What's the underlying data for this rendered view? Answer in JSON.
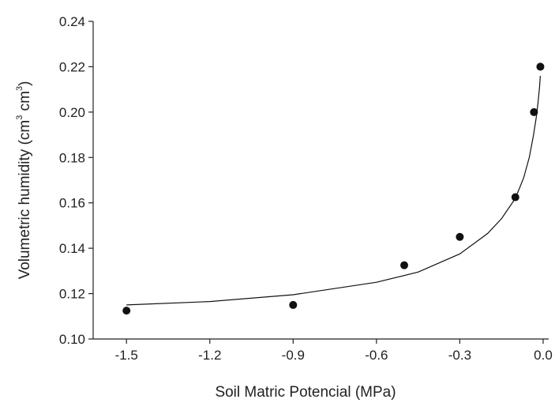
{
  "chart_data": {
    "type": "scatter",
    "title": "",
    "xlabel": "Soil Matric Potencial (MPa)",
    "ylabel": {
      "main": "Volumetric humidity (cm",
      "sup1": "3",
      "mid": " cm",
      "sup2": "3",
      "end": ")"
    },
    "xlim": [
      -1.62,
      0.02
    ],
    "ylim": [
      0.1,
      0.24
    ],
    "x_ticks": [
      -1.5,
      -1.2,
      -0.9,
      -0.6,
      -0.3,
      0.0
    ],
    "x_tick_labels": [
      "-1.5",
      "-1.2",
      "-0.9",
      "-0.6",
      "-0.3",
      "0.0"
    ],
    "y_ticks": [
      0.1,
      0.12,
      0.14,
      0.16,
      0.18,
      0.2,
      0.22,
      0.24
    ],
    "y_tick_labels": [
      "0.10",
      "0.12",
      "0.14",
      "0.16",
      "0.18",
      "0.20",
      "0.22",
      "0.24"
    ],
    "grid": false,
    "series": [
      {
        "kind": "points",
        "x": [
          -1.5,
          -0.9,
          -0.5,
          -0.3,
          -0.1,
          -0.033,
          -0.01
        ],
        "y": [
          0.1125,
          0.115,
          0.1325,
          0.145,
          0.1625,
          0.2,
          0.22
        ]
      },
      {
        "kind": "fitted-curve",
        "x": [
          -1.5,
          -1.2,
          -0.9,
          -0.6,
          -0.45,
          -0.3,
          -0.2,
          -0.15,
          -0.1,
          -0.07,
          -0.05,
          -0.035,
          -0.025,
          -0.018,
          -0.013,
          -0.01
        ],
        "y": [
          0.115,
          0.1165,
          0.1195,
          0.125,
          0.1295,
          0.1375,
          0.1465,
          0.153,
          0.162,
          0.171,
          0.18,
          0.1895,
          0.1975,
          0.2045,
          0.211,
          0.216
        ]
      }
    ]
  }
}
